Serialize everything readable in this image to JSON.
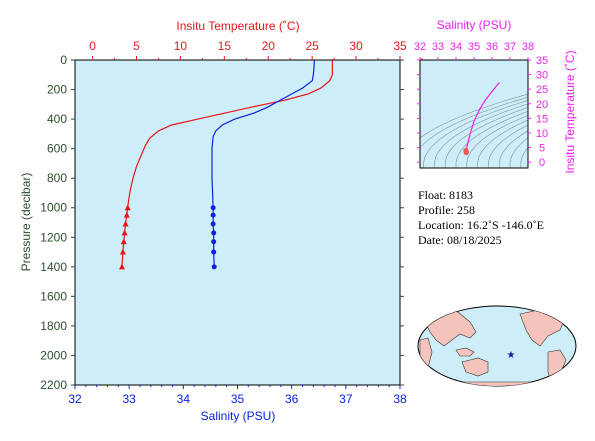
{
  "colors": {
    "temperature": "#e8161b",
    "salinity": "#0a22e0",
    "ts_curve": "#ee22ee",
    "pressure_axis": "#2e4e2e",
    "panel_bg": "#cdeef8",
    "land": "#f4c4bc",
    "ocean": "#cdeef8",
    "marker": "#1a1aa8"
  },
  "chart_data": [
    {
      "type": "line",
      "title": "",
      "top_axis": {
        "label": "Insitu Temperature (˚C)",
        "lim": [
          -2,
          35
        ],
        "ticks": [
          0,
          5,
          10,
          15,
          20,
          25,
          30,
          35
        ]
      },
      "bottom_axis": {
        "label": "Salinity (PSU)",
        "lim": [
          32,
          38
        ],
        "ticks": [
          32,
          33,
          34,
          35,
          36,
          37,
          38
        ]
      },
      "left_axis": {
        "label": "Pressure (decibar)",
        "lim": [
          0,
          2200
        ],
        "ticks": [
          0,
          200,
          400,
          600,
          800,
          1000,
          1200,
          1400,
          1600,
          1800,
          2000,
          2200
        ],
        "inverted": true
      },
      "grid": false,
      "series": [
        {
          "axis": "top",
          "color": "temperature",
          "marker": "triangle",
          "x": [
            27.3,
            27.3,
            27.3,
            27.0,
            26.0,
            24.5,
            22.0,
            18.0,
            12.0,
            9.0,
            7.5,
            6.5,
            6.0,
            5.5,
            5.0,
            4.6,
            4.3,
            4.1,
            4.0,
            3.9,
            3.75,
            3.65,
            3.55,
            3.45,
            3.35
          ],
          "y": [
            0,
            60,
            100,
            140,
            190,
            230,
            270,
            320,
            400,
            440,
            480,
            530,
            580,
            650,
            720,
            800,
            880,
            950,
            1000,
            1050,
            1110,
            1170,
            1230,
            1300,
            1400
          ],
          "marker_y": [
            1000,
            1050,
            1110,
            1170,
            1230,
            1300,
            1400
          ]
        },
        {
          "axis": "bottom",
          "color": "salinity",
          "marker": "circle",
          "x": [
            36.42,
            36.41,
            36.4,
            36.38,
            36.2,
            36.0,
            35.8,
            35.55,
            35.3,
            34.95,
            34.72,
            34.6,
            34.55,
            34.53,
            34.53,
            34.53,
            34.54,
            34.55,
            34.55,
            34.55,
            34.56,
            34.56,
            34.56,
            34.57,
            34.57
          ],
          "y": [
            0,
            60,
            100,
            140,
            190,
            230,
            270,
            320,
            360,
            400,
            440,
            480,
            520,
            600,
            700,
            800,
            900,
            1000,
            1050,
            1110,
            1170,
            1230,
            1300,
            1400,
            1400
          ],
          "marker_y": [
            1000,
            1050,
            1110,
            1170,
            1230,
            1300,
            1400
          ]
        }
      ]
    },
    {
      "type": "line",
      "title": "",
      "top_axis": {
        "label": "Salinity (PSU)",
        "lim": [
          32,
          38
        ],
        "ticks": [
          32,
          33,
          34,
          35,
          36,
          37,
          38
        ]
      },
      "right_axis": {
        "label": "Insitu Temperature (˚C)",
        "lim": [
          -2,
          35
        ],
        "ticks": [
          0,
          5,
          10,
          15,
          20,
          25,
          30,
          35
        ]
      },
      "series": [
        {
          "color": "ts_curve",
          "x": [
            36.42,
            36.3,
            36.1,
            35.85,
            35.6,
            35.35,
            35.15,
            35.0,
            34.9,
            34.8,
            34.72,
            34.65,
            34.6,
            34.57,
            34.56
          ],
          "y": [
            27.3,
            26.5,
            25.0,
            23.0,
            21.0,
            18.5,
            16.0,
            14.0,
            12.0,
            10.0,
            8.0,
            6.5,
            5.0,
            4.0,
            3.4
          ],
          "marker_points": [
            [
              34.55,
              4.0
            ],
            [
              34.56,
              3.6
            ],
            [
              34.57,
              3.3
            ]
          ]
        }
      ]
    }
  ],
  "info": {
    "float": "Float:  8183",
    "profile": "Profile:  258",
    "location": "Location:  16.2˚S  -146.0˚E",
    "date": "Date:  08/18/2025"
  },
  "map": {
    "float_location": {
      "lat": -16.2,
      "lon": -146.0
    },
    "marker_icon": "star-icon"
  }
}
